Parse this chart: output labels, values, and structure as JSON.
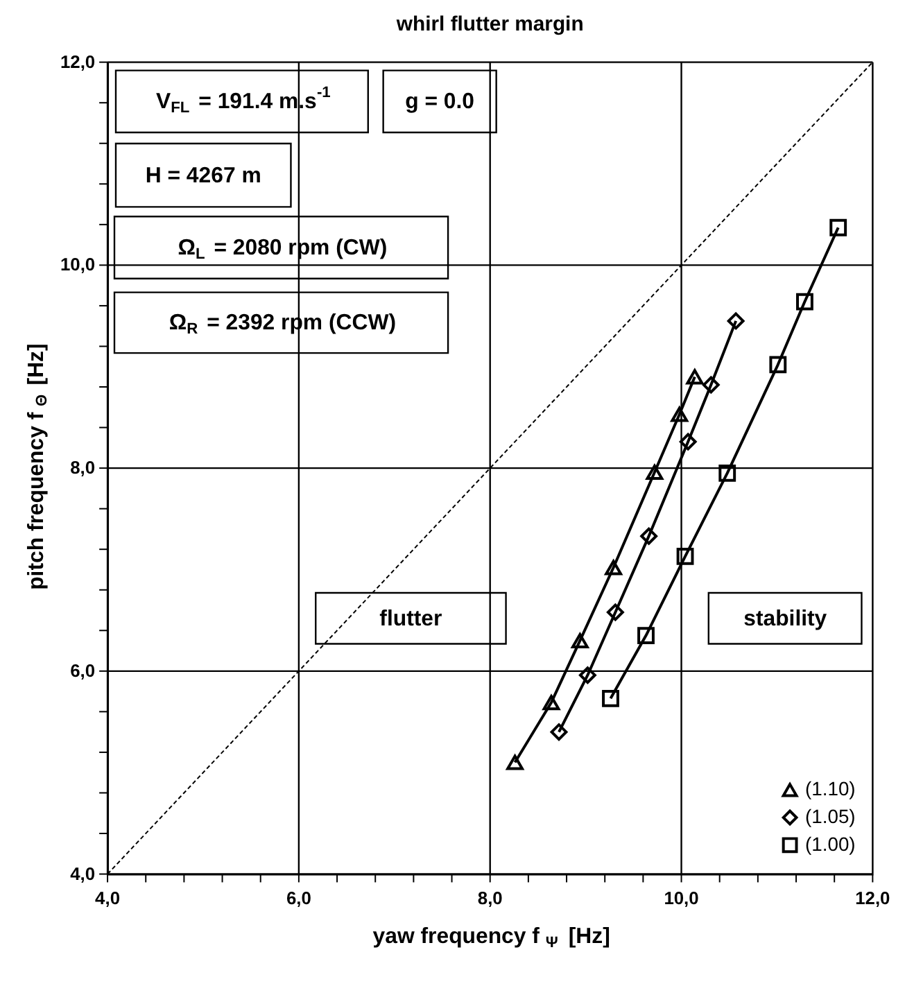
{
  "chart_data": {
    "type": "line",
    "title": "whirl flutter margin",
    "xlabel": "yaw frequency  f$_{Ψ}$ [Hz]",
    "ylabel": "pitch frequency  f$_{Θ}$ [Hz]",
    "xlim": [
      4,
      12
    ],
    "ylim": [
      4,
      12
    ],
    "xticks": [
      {
        "value": 4,
        "label": "4,0"
      },
      {
        "value": 4.4,
        "label": null
      },
      {
        "value": 4.8,
        "label": null
      },
      {
        "value": 5.2,
        "label": null
      },
      {
        "value": 5.6,
        "label": null
      },
      {
        "value": 6,
        "label": "6,0"
      },
      {
        "value": 6.4,
        "label": null
      },
      {
        "value": 6.8,
        "label": null
      },
      {
        "value": 7.2,
        "label": null
      },
      {
        "value": 7.6,
        "label": null
      },
      {
        "value": 8,
        "label": "8,0"
      },
      {
        "value": 8.4,
        "label": null
      },
      {
        "value": 8.8,
        "label": null
      },
      {
        "value": 9.2,
        "label": null
      },
      {
        "value": 9.6,
        "label": null
      },
      {
        "value": 10,
        "label": "10,0"
      },
      {
        "value": 10.4,
        "label": null
      },
      {
        "value": 10.8,
        "label": null
      },
      {
        "value": 11.2,
        "label": null
      },
      {
        "value": 11.6,
        "label": null
      },
      {
        "value": 12,
        "label": "12,0"
      }
    ],
    "yticks": [
      {
        "value": 4,
        "label": "4,0"
      },
      {
        "value": 4.4,
        "label": null
      },
      {
        "value": 4.8,
        "label": null
      },
      {
        "value": 5.2,
        "label": null
      },
      {
        "value": 5.6,
        "label": null
      },
      {
        "value": 6,
        "label": "6,0"
      },
      {
        "value": 6.4,
        "label": null
      },
      {
        "value": 6.8,
        "label": null
      },
      {
        "value": 7.2,
        "label": null
      },
      {
        "value": 7.6,
        "label": null
      },
      {
        "value": 8,
        "label": "8,0"
      },
      {
        "value": 8.4,
        "label": null
      },
      {
        "value": 8.8,
        "label": null
      },
      {
        "value": 9.2,
        "label": null
      },
      {
        "value": 9.6,
        "label": null
      },
      {
        "value": 10,
        "label": "10,0"
      },
      {
        "value": 10.4,
        "label": null
      },
      {
        "value": 10.8,
        "label": null
      },
      {
        "value": 11.2,
        "label": null
      },
      {
        "value": 11.6,
        "label": null
      },
      {
        "value": 12,
        "label": "12,0"
      }
    ],
    "grid": true,
    "legend": "bottom right",
    "series": [
      {
        "name": "(1.10)",
        "color": "#000000",
        "marker": "triangle",
        "line_style": "solid",
        "x": [
          8.26,
          8.64,
          8.94,
          9.29,
          9.72,
          9.98,
          10.14
        ],
        "values": [
          5.1,
          5.69,
          6.3,
          7.02,
          7.96,
          8.53,
          8.9
        ]
      },
      {
        "name": "(1.05)",
        "color": "#000000",
        "marker": "diamond",
        "line_style": "solid",
        "x": [
          8.72,
          9.02,
          9.31,
          9.66,
          10.07,
          10.31,
          10.57
        ],
        "values": [
          5.4,
          5.96,
          6.58,
          7.33,
          8.26,
          8.82,
          9.45
        ]
      },
      {
        "name": "(1.00)",
        "color": "#000000",
        "marker": "square",
        "line_style": "solid",
        "x": [
          9.26,
          9.63,
          10.04,
          10.48,
          11.01,
          11.29,
          11.64
        ],
        "values": [
          5.73,
          6.35,
          7.13,
          7.95,
          9.02,
          9.64,
          10.37
        ]
      },
      {
        "color": "#000000",
        "marker": "none",
        "line_style": "dotted",
        "x": [
          4,
          12
        ],
        "values": [
          4,
          12
        ]
      }
    ],
    "annotations": [
      "V$_{FL}$ = 191.4 m.s$^{-1}$",
      "g = 0.0",
      "H = 4267 m",
      "Ω$_{L}$ = 2080 rpm (CW)",
      "Ω$_{R}$ = 2392 rpm (CCW)",
      "flutter",
      "stability"
    ]
  }
}
